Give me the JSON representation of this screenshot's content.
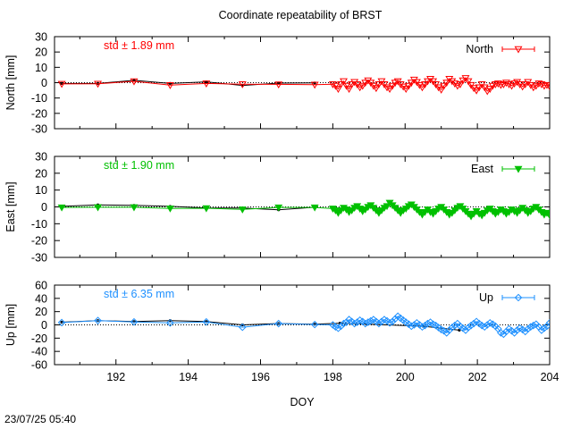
{
  "title": "Coordinate repeatability of BRST",
  "timestamp": "23/07/25 05:40",
  "chart_data": [
    {
      "type": "line",
      "ylabel": "North [mm]",
      "xlabel": "DOY",
      "xlim": [
        190.3,
        204.0
      ],
      "ylim": [
        -30,
        30
      ],
      "yticks": [
        -30,
        -20,
        -10,
        0,
        10,
        20,
        30
      ],
      "xticks": [
        192,
        194,
        196,
        198,
        200,
        202,
        204
      ],
      "color": "#ff0000",
      "annotation": "std ± 1.89 mm",
      "legend": "North",
      "legend_position": "top-right",
      "marker": "triangle-down-open",
      "reference": {
        "x": [
          190.5,
          191.5,
          192.5,
          193.5,
          194.5,
          195.5,
          196.5,
          197.5
        ],
        "values": [
          -0.5,
          -0.5,
          1.5,
          -0.5,
          0.5,
          -1.8,
          -0.3,
          -0.2
        ]
      },
      "series": {
        "x_start": 190.5,
        "x_step": 0.0625,
        "daily_values": [
          -0.8,
          -0.7,
          0.9,
          -1.6,
          -0.5,
          -1.0,
          -1.1,
          -1.3
        ],
        "values": [
          -1.0,
          -2.0,
          -4.0,
          -1.0,
          1.0,
          -2.0,
          -4.0,
          -1.0,
          0.5,
          -1.0,
          -3.0,
          -2.0,
          0.0,
          1.5,
          0.0,
          -2.0,
          -3.5,
          -1.0,
          1.0,
          -1.0,
          -3.0,
          -4.0,
          -2.0,
          0.0,
          1.0,
          -1.0,
          -2.5,
          -4.0,
          -2.0,
          0.0,
          2.0,
          0.5,
          -1.5,
          -3.0,
          -1.0,
          1.0,
          2.5,
          1.0,
          -1.0,
          -3.0,
          -4.5,
          -2.0,
          0.0,
          2.5,
          1.0,
          -0.5,
          -2.0,
          -1.0,
          1.5,
          3.0,
          1.0,
          -1.5,
          -3.5,
          -5.0,
          -3.0,
          -1.0,
          -3.0,
          -5.5,
          -4.0,
          -2.0,
          -1.0,
          -0.5,
          -1.5,
          -1.0,
          0.0,
          -1.0,
          -2.0,
          -0.5,
          0.5,
          -1.0,
          -2.5,
          -1.0,
          0.5,
          -1.5,
          -3.0,
          -2.0,
          -0.5,
          -1.0,
          -2.0,
          -1.5,
          -2.5
        ]
      }
    },
    {
      "type": "line",
      "ylabel": "East [mm]",
      "xlabel": "DOY",
      "xlim": [
        190.3,
        204.0
      ],
      "ylim": [
        -30,
        30
      ],
      "yticks": [
        -30,
        -20,
        -10,
        0,
        10,
        20,
        30
      ],
      "xticks": [
        192,
        194,
        196,
        198,
        200,
        202,
        204
      ],
      "color": "#00c000",
      "annotation": "std ± 1.90 mm",
      "legend": "East",
      "legend_position": "top-right",
      "marker": "triangle-down-filled",
      "reference": {
        "x": [
          190.5,
          191.5,
          192.5,
          193.5,
          194.5,
          195.5,
          196.5,
          197.5
        ],
        "values": [
          0.3,
          1.2,
          0.9,
          0.3,
          -0.6,
          -0.7,
          -1.7,
          -0.2
        ]
      },
      "series": {
        "x_start": 190.5,
        "x_step": 0.0625,
        "daily_values": [
          -0.3,
          -0.2,
          -0.2,
          -0.9,
          -0.8,
          -1.5,
          -0.3,
          -0.3
        ],
        "values": [
          -1.0,
          -2.0,
          -3.5,
          -2.0,
          -0.5,
          -1.5,
          -3.0,
          -2.0,
          -0.5,
          0.5,
          -1.0,
          -2.5,
          -1.5,
          0.0,
          1.0,
          -0.5,
          -2.0,
          -3.5,
          -2.0,
          -0.5,
          0.5,
          2.5,
          1.0,
          -0.5,
          -2.0,
          -3.5,
          -2.0,
          -1.0,
          0.5,
          1.5,
          0.0,
          -1.5,
          -3.0,
          -4.5,
          -3.0,
          -1.5,
          -3.0,
          -4.0,
          -2.5,
          -1.0,
          0.0,
          -1.5,
          -3.0,
          -4.5,
          -3.5,
          -2.0,
          -0.5,
          0.5,
          -1.0,
          -2.5,
          -4.0,
          -5.5,
          -4.0,
          -2.5,
          -4.0,
          -5.0,
          -3.5,
          -2.0,
          -1.0,
          -2.5,
          -4.0,
          -3.0,
          -1.5,
          -2.5,
          -4.0,
          -3.0,
          -1.5,
          -2.5,
          -3.5,
          -2.0,
          -0.5,
          -2.0,
          -3.5,
          -2.5,
          -1.0,
          0.0,
          -1.5,
          -3.0,
          -4.5,
          -3.5,
          -5.0
        ]
      }
    },
    {
      "type": "line",
      "ylabel": "Up [mm]",
      "xlabel": "DOY",
      "xlim": [
        190.3,
        204.0
      ],
      "ylim": [
        -60,
        60
      ],
      "yticks": [
        -60,
        -40,
        -20,
        0,
        20,
        40,
        60
      ],
      "xticks": [
        192,
        194,
        196,
        198,
        200,
        202,
        204
      ],
      "xticklabels": [
        "192",
        "194",
        "196",
        "198",
        "200",
        "202",
        "204"
      ],
      "color": "#1e90ff",
      "annotation": "std ± 6.35 mm",
      "legend": "Up",
      "legend_position": "top-right",
      "marker": "diamond-open",
      "reference": {
        "x": [
          190.5,
          191.5,
          192.5,
          193.5,
          194.5,
          195.5,
          196.5,
          197.5,
          198.2,
          200.5,
          201.5
        ],
        "values": [
          4.0,
          6.5,
          5.0,
          6.5,
          5.0,
          0.0,
          2.0,
          1.0,
          2.5,
          -2.0,
          -8.0
        ]
      },
      "series": {
        "x_start": 190.5,
        "x_step": 0.0625,
        "daily_values": [
          3.5,
          6.5,
          4.5,
          3.0,
          4.5,
          -3.5,
          2.0,
          0.5
        ],
        "values": [
          0.0,
          -3.0,
          -5.0,
          -2.0,
          2.0,
          4.0,
          8.0,
          5.0,
          2.0,
          4.0,
          7.0,
          5.0,
          2.0,
          4.0,
          6.0,
          8.0,
          5.0,
          2.0,
          5.0,
          8.0,
          6.0,
          3.0,
          5.0,
          9.0,
          13.0,
          10.0,
          7.0,
          4.0,
          1.0,
          -2.0,
          0.0,
          3.0,
          0.0,
          -3.0,
          -1.0,
          2.0,
          4.0,
          1.0,
          -1.0,
          -4.0,
          -7.0,
          -9.0,
          -12.0,
          -8.0,
          -4.0,
          -1.0,
          2.0,
          -2.0,
          -5.0,
          -8.0,
          -4.0,
          -1.0,
          2.0,
          5.0,
          2.0,
          -1.0,
          -3.0,
          0.0,
          3.0,
          1.0,
          -2.0,
          -6.0,
          -12.0,
          -14.0,
          -10.0,
          -6.0,
          -9.0,
          -12.0,
          -8.0,
          -5.0,
          -7.0,
          -10.0,
          -6.0,
          -3.0,
          -1.0,
          1.0,
          -3.0,
          -8.0,
          -5.0,
          -2.0,
          3.0
        ]
      }
    }
  ]
}
